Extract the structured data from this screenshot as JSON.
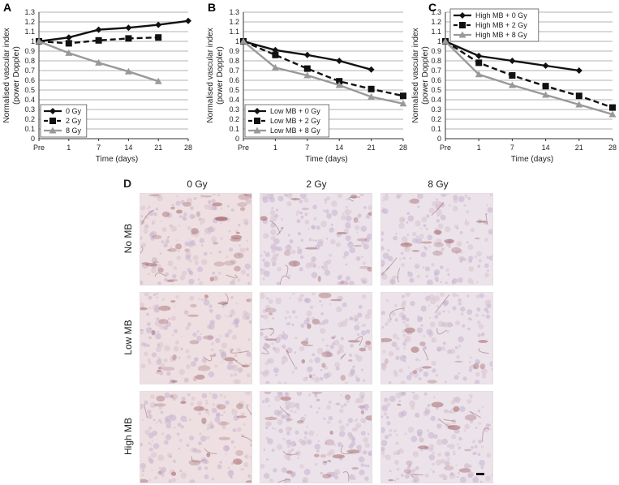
{
  "axis": {
    "ylabel_line1": "Normalised vascular index",
    "ylabel_line2": "(power Doppler)",
    "xlabel": "Time (days)"
  },
  "chart_data": [
    {
      "panel": "A",
      "type": "line",
      "categories": [
        "Pre",
        "1",
        "7",
        "14",
        "21",
        "28"
      ],
      "ylim": [
        0,
        1.3
      ],
      "yticks": [
        0,
        0.1,
        0.2,
        0.3,
        0.4,
        0.5,
        0.6,
        0.7,
        0.8,
        0.9,
        1,
        1.1,
        1.2,
        1.3
      ],
      "grid": true,
      "legend_position": "bottom-left",
      "series": [
        {
          "name": "0 Gy",
          "color": "#111111",
          "style": "solid",
          "marker": "diamond",
          "values": [
            1.0,
            1.04,
            1.12,
            1.14,
            1.17,
            1.21
          ]
        },
        {
          "name": "2 Gy",
          "color": "#111111",
          "style": "dashed",
          "marker": "square",
          "values": [
            1.0,
            0.98,
            1.01,
            1.03,
            1.04,
            null
          ]
        },
        {
          "name": "8 Gy",
          "color": "#999999",
          "style": "solid",
          "marker": "triangle",
          "values": [
            1.0,
            0.88,
            0.78,
            0.69,
            0.59,
            null
          ]
        }
      ]
    },
    {
      "panel": "B",
      "type": "line",
      "categories": [
        "Pre",
        "1",
        "7",
        "14",
        "21",
        "28"
      ],
      "ylim": [
        0,
        1.3
      ],
      "yticks": [
        0,
        0.1,
        0.2,
        0.3,
        0.4,
        0.5,
        0.6,
        0.7,
        0.8,
        0.9,
        1,
        1.1,
        1.2,
        1.3
      ],
      "grid": true,
      "legend_position": "bottom-left",
      "series": [
        {
          "name": "Low MB + 0 Gy",
          "color": "#111111",
          "style": "solid",
          "marker": "diamond",
          "values": [
            1.0,
            0.91,
            0.86,
            0.8,
            0.71,
            null
          ]
        },
        {
          "name": "Low MB + 2 Gy",
          "color": "#111111",
          "style": "dashed",
          "marker": "square",
          "values": [
            1.0,
            0.86,
            0.72,
            0.59,
            0.51,
            0.44
          ]
        },
        {
          "name": "Low MB + 8 Gy",
          "color": "#999999",
          "style": "solid",
          "marker": "triangle",
          "values": [
            1.0,
            0.73,
            0.65,
            0.55,
            0.43,
            0.36
          ]
        }
      ]
    },
    {
      "panel": "C",
      "type": "line",
      "categories": [
        "Pre",
        "1",
        "7",
        "14",
        "21",
        "28"
      ],
      "ylim": [
        0,
        1.3
      ],
      "yticks": [
        0,
        0.1,
        0.2,
        0.3,
        0.4,
        0.5,
        0.6,
        0.7,
        0.8,
        0.9,
        1,
        1.1,
        1.2,
        1.3
      ],
      "grid": true,
      "legend_position": "top-right",
      "series": [
        {
          "name": "High MB + 0 Gy",
          "color": "#111111",
          "style": "solid",
          "marker": "diamond",
          "values": [
            1.0,
            0.85,
            0.8,
            0.75,
            0.7,
            null
          ]
        },
        {
          "name": "High MB + 2 Gy",
          "color": "#111111",
          "style": "dashed",
          "marker": "square",
          "values": [
            1.0,
            0.78,
            0.65,
            0.54,
            0.44,
            0.32
          ]
        },
        {
          "name": "High MB + 8 Gy",
          "color": "#999999",
          "style": "solid",
          "marker": "triangle",
          "values": [
            1.0,
            0.66,
            0.55,
            0.45,
            0.35,
            0.25
          ]
        }
      ]
    }
  ],
  "panel_d": {
    "letter": "D",
    "columns": [
      "0 Gy",
      "2 Gy",
      "8 Gy"
    ],
    "rows": [
      "No MB",
      "Low MB",
      "High MB"
    ]
  }
}
